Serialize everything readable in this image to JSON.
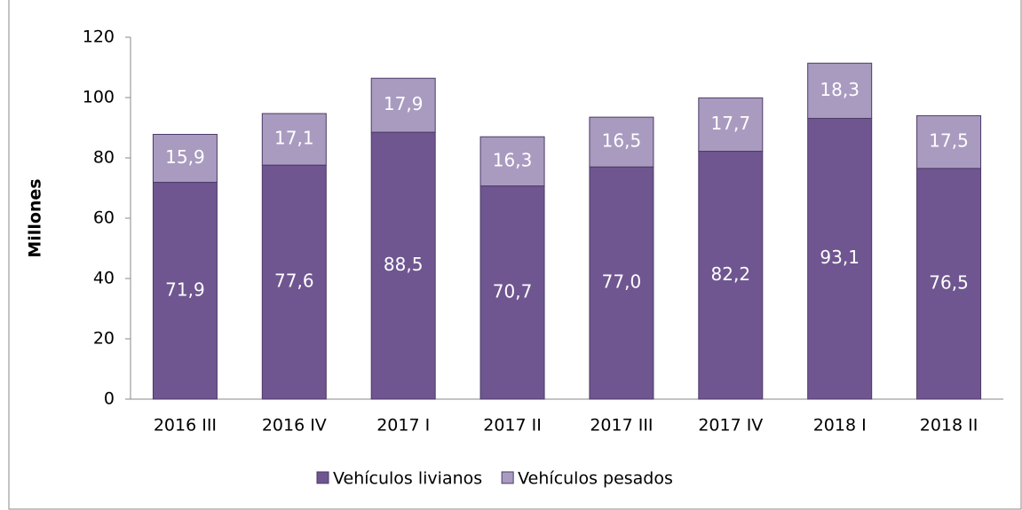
{
  "chart_data": {
    "type": "stacked_bar",
    "y_label": "Millones",
    "categories": [
      "2016 III",
      "2016 IV",
      "2017 I",
      "2017 II",
      "2017 III",
      "2017 IV",
      "2018 I",
      "2018 II"
    ],
    "series": [
      {
        "name": "Vehículos livianos",
        "color": "#6f5690",
        "values": [
          71.9,
          77.6,
          88.5,
          70.7,
          77.0,
          82.2,
          93.1,
          76.5
        ],
        "value_labels": [
          "71,9",
          "77,6",
          "88,5",
          "70,7",
          "77,0",
          "82,2",
          "93,1",
          "76,5"
        ]
      },
      {
        "name": "Vehículos pesados",
        "color": "#a99bc0",
        "values": [
          15.9,
          17.1,
          17.9,
          16.3,
          16.5,
          17.7,
          18.3,
          17.5
        ],
        "value_labels": [
          "15,9",
          "17,1",
          "17,9",
          "16,3",
          "16,5",
          "17,7",
          "18,3",
          "17,5"
        ]
      }
    ],
    "ylim": [
      0,
      120
    ],
    "yticks": [
      0,
      20,
      40,
      60,
      80,
      100,
      120
    ],
    "grid": false,
    "legend": "bottom"
  }
}
